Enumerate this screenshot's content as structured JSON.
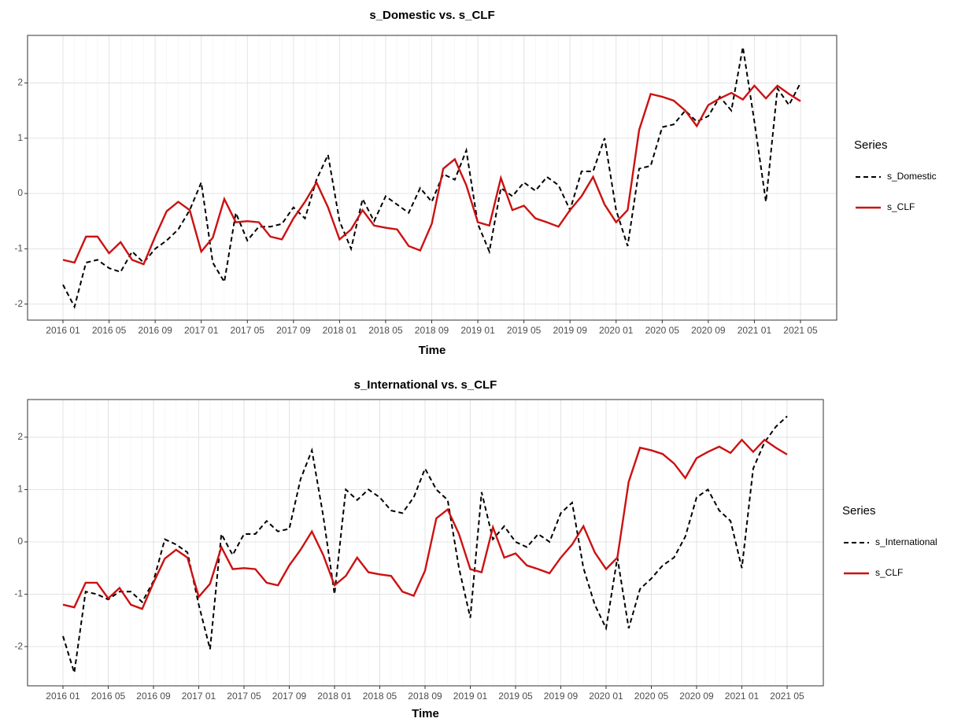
{
  "chart_data": [
    {
      "type": "line",
      "title": "s_Domestic vs. s_CLF",
      "x_label": "Time",
      "legend_title": "Series",
      "categories": [
        "2016 01",
        null,
        null,
        null,
        "2016 05",
        null,
        null,
        null,
        "2016 09",
        null,
        null,
        null,
        "2017 01",
        null,
        null,
        null,
        "2017 05",
        null,
        null,
        null,
        "2017 09",
        null,
        null,
        null,
        "2018 01",
        null,
        null,
        null,
        "2018 05",
        null,
        null,
        null,
        "2018 09",
        null,
        null,
        null,
        "2019 01",
        null,
        null,
        null,
        "2019 05",
        null,
        null,
        null,
        "2019 09",
        null,
        null,
        null,
        "2020 01",
        null,
        null,
        null,
        "2020 05",
        null,
        null,
        null,
        "2020 09",
        null,
        null,
        null,
        "2021 01",
        null,
        null,
        null,
        "2021 05"
      ],
      "ylim": [
        -2.29,
        2.86
      ],
      "yticks": [
        -2,
        -1,
        0,
        1,
        2
      ],
      "grid": true,
      "series": [
        {
          "name": "s_Domestic",
          "color": "#000000",
          "dashed": true,
          "values": [
            -1.65,
            -2.05,
            -1.25,
            -1.2,
            -1.35,
            -1.42,
            -1.05,
            -1.25,
            -1.0,
            -0.85,
            -0.65,
            -0.3,
            0.2,
            -1.25,
            -1.6,
            -0.35,
            -0.85,
            -0.6,
            -0.6,
            -0.55,
            -0.25,
            -0.45,
            0.25,
            0.7,
            -0.5,
            -1.0,
            -0.1,
            -0.5,
            -0.05,
            -0.2,
            -0.35,
            0.1,
            -0.15,
            0.35,
            0.25,
            0.78,
            -0.55,
            -1.05,
            0.1,
            -0.05,
            0.2,
            0.05,
            0.3,
            0.15,
            -0.3,
            0.4,
            0.4,
            1.0,
            -0.3,
            -0.95,
            0.45,
            0.5,
            1.2,
            1.25,
            1.5,
            1.3,
            1.4,
            1.75,
            1.5,
            2.65,
            1.3,
            -0.15,
            1.9,
            1.6,
            2.0
          ]
        },
        {
          "name": "s_CLF",
          "color": "#cc1111",
          "dashed": false,
          "values": [
            -1.2,
            -1.25,
            -0.78,
            -0.78,
            -1.08,
            -0.88,
            -1.2,
            -1.28,
            -0.78,
            -0.32,
            -0.15,
            -0.3,
            -1.05,
            -0.8,
            -0.1,
            -0.52,
            -0.5,
            -0.52,
            -0.78,
            -0.83,
            -0.45,
            -0.15,
            0.2,
            -0.25,
            -0.83,
            -0.65,
            -0.3,
            -0.58,
            -0.62,
            -0.65,
            -0.95,
            -1.03,
            -0.55,
            0.45,
            0.62,
            0.15,
            -0.52,
            -0.58,
            0.28,
            -0.3,
            -0.22,
            -0.45,
            -0.52,
            -0.6,
            -0.3,
            -0.05,
            0.3,
            -0.2,
            -0.52,
            -0.3,
            1.15,
            1.8,
            1.75,
            1.68,
            1.5,
            1.22,
            1.6,
            1.72,
            1.82,
            1.7,
            1.95,
            1.72,
            1.95,
            1.8,
            1.67
          ]
        }
      ]
    },
    {
      "type": "line",
      "title": "s_International vs. s_CLF",
      "x_label": "Time",
      "legend_title": "Series",
      "categories": [
        "2016 01",
        null,
        null,
        null,
        "2016 05",
        null,
        null,
        null,
        "2016 09",
        null,
        null,
        null,
        "2017 01",
        null,
        null,
        null,
        "2017 05",
        null,
        null,
        null,
        "2017 09",
        null,
        null,
        null,
        "2018 01",
        null,
        null,
        null,
        "2018 05",
        null,
        null,
        null,
        "2018 09",
        null,
        null,
        null,
        "2019 01",
        null,
        null,
        null,
        "2019 05",
        null,
        null,
        null,
        "2019 09",
        null,
        null,
        null,
        "2020 01",
        null,
        null,
        null,
        "2020 05",
        null,
        null,
        null,
        "2020 09",
        null,
        null,
        null,
        "2021 01",
        null,
        null,
        null,
        "2021 05"
      ],
      "ylim": [
        -2.75,
        2.72
      ],
      "yticks": [
        -2,
        -1,
        0,
        1,
        2
      ],
      "grid": true,
      "series": [
        {
          "name": "s_International",
          "color": "#000000",
          "dashed": true,
          "values": [
            -1.8,
            -2.5,
            -0.95,
            -1.0,
            -1.1,
            -0.95,
            -0.95,
            -1.15,
            -0.75,
            0.05,
            -0.05,
            -0.2,
            -1.2,
            -2.05,
            0.15,
            -0.25,
            0.15,
            0.15,
            0.4,
            0.2,
            0.25,
            1.2,
            1.75,
            0.5,
            -1.0,
            1.0,
            0.8,
            1.0,
            0.85,
            0.6,
            0.55,
            0.85,
            1.4,
            1.0,
            0.8,
            -0.5,
            -1.45,
            0.95,
            0.05,
            0.3,
            0.0,
            -0.1,
            0.15,
            0.0,
            0.55,
            0.75,
            -0.5,
            -1.2,
            -1.65,
            -0.3,
            -1.65,
            -0.9,
            -0.7,
            -0.45,
            -0.3,
            0.1,
            0.85,
            1.0,
            0.6,
            0.4,
            -0.5,
            1.4,
            1.9,
            2.2,
            2.4
          ]
        },
        {
          "name": "s_CLF",
          "color": "#cc1111",
          "dashed": false,
          "values": [
            -1.2,
            -1.25,
            -0.78,
            -0.78,
            -1.08,
            -0.88,
            -1.2,
            -1.28,
            -0.78,
            -0.32,
            -0.15,
            -0.3,
            -1.05,
            -0.8,
            -0.1,
            -0.52,
            -0.5,
            -0.52,
            -0.78,
            -0.83,
            -0.45,
            -0.15,
            0.2,
            -0.25,
            -0.83,
            -0.65,
            -0.3,
            -0.58,
            -0.62,
            -0.65,
            -0.95,
            -1.03,
            -0.55,
            0.45,
            0.62,
            0.15,
            -0.52,
            -0.58,
            0.28,
            -0.3,
            -0.22,
            -0.45,
            -0.52,
            -0.6,
            -0.3,
            -0.05,
            0.3,
            -0.2,
            -0.52,
            -0.3,
            1.15,
            1.8,
            1.75,
            1.68,
            1.5,
            1.22,
            1.6,
            1.72,
            1.82,
            1.7,
            1.95,
            1.72,
            1.95,
            1.8,
            1.67
          ]
        }
      ]
    }
  ]
}
